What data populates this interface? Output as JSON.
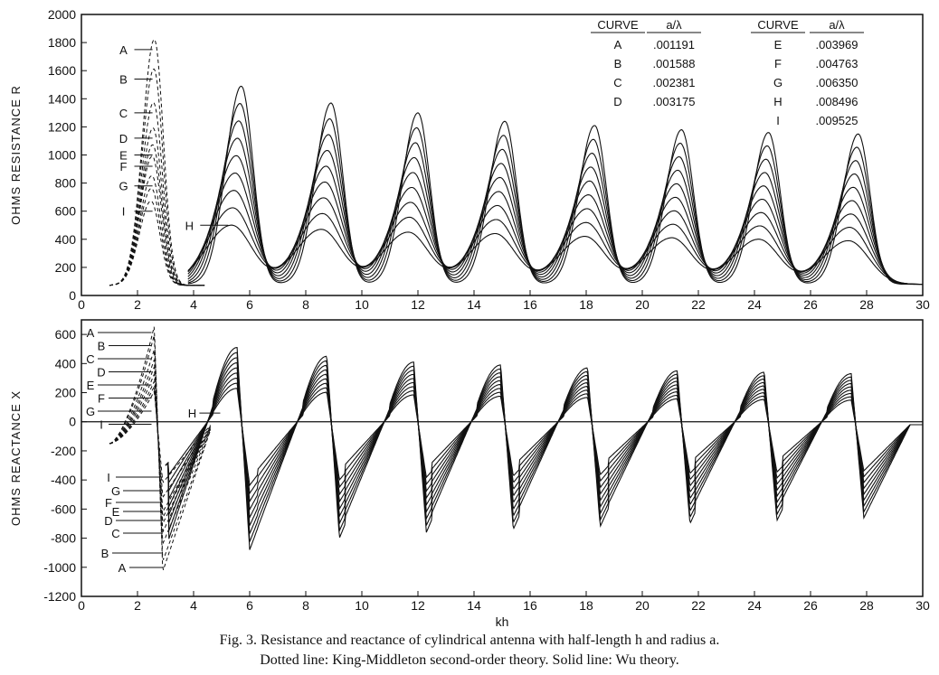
{
  "caption": {
    "line1": "Fig. 3.    Resistance and reactance of cylindrical antenna with half-length h and radius a.",
    "line2": "Dotted line: King-Middleton second-order theory. Solid line: Wu theory."
  },
  "chart_data": [
    {
      "type": "line",
      "panel": "top",
      "title": "",
      "xlabel": "",
      "ylabel": "OHMS  RESISTANCE  R",
      "xlim": [
        0,
        30
      ],
      "ylim": [
        0,
        2000
      ],
      "xticks": [
        0,
        2,
        4,
        6,
        8,
        10,
        12,
        14,
        16,
        18,
        20,
        22,
        24,
        26,
        28,
        30
      ],
      "yticks": [
        0,
        200,
        400,
        600,
        800,
        1000,
        1200,
        1400,
        1600,
        1800,
        2000
      ],
      "legend": {
        "headers": [
          "CURVE",
          "a/λ",
          "CURVE",
          "a/λ"
        ],
        "entries": [
          {
            "curve": "A",
            "a_over_lambda": ".001191"
          },
          {
            "curve": "B",
            "a_over_lambda": ".001588"
          },
          {
            "curve": "C",
            "a_over_lambda": ".002381"
          },
          {
            "curve": "D",
            "a_over_lambda": ".003175"
          },
          {
            "curve": "E",
            "a_over_lambda": ".003969"
          },
          {
            "curve": "F",
            "a_over_lambda": ".004763"
          },
          {
            "curve": "G",
            "a_over_lambda": ".006350"
          },
          {
            "curve": "H",
            "a_over_lambda": ".008496"
          },
          {
            "curve": "I",
            "a_over_lambda": ".009525"
          }
        ],
        "placement": "top-right"
      },
      "first_peak_kh": 2.6,
      "first_peak_R": [
        1750,
        1540,
        1300,
        1120,
        1000,
        920,
        780,
        0,
        600
      ],
      "peak_kh": [
        5.7,
        8.9,
        12.0,
        15.1,
        18.3,
        21.4,
        24.5,
        27.7
      ],
      "peak_R_max": [
        1490,
        1370,
        1300,
        1240,
        1210,
        1180,
        1160,
        1150
      ],
      "peak_R_min": [
        500,
        470,
        450,
        440,
        420,
        410,
        400,
        390
      ],
      "valley_R": 80,
      "curve_labels": [
        {
          "label": "A",
          "kh": 2.6,
          "R": 1750
        },
        {
          "label": "B",
          "kh": 2.6,
          "R": 1540
        },
        {
          "label": "C",
          "kh": 2.6,
          "R": 1300
        },
        {
          "label": "D",
          "kh": 2.6,
          "R": 1120
        },
        {
          "label": "E",
          "kh": 2.6,
          "R": 1000
        },
        {
          "label": "F",
          "kh": 2.6,
          "R": 920
        },
        {
          "label": "G",
          "kh": 2.6,
          "R": 780
        },
        {
          "label": "I",
          "kh": 2.6,
          "R": 600
        },
        {
          "label": "H",
          "kh": 5.3,
          "R": 500
        }
      ]
    },
    {
      "type": "line",
      "panel": "bottom",
      "title": "",
      "xlabel": "kh",
      "ylabel": "OHMS  REACTANCE  X",
      "xlim": [
        0,
        30
      ],
      "ylim": [
        -1200,
        700
      ],
      "xticks": [
        0,
        2,
        4,
        6,
        8,
        10,
        12,
        14,
        16,
        18,
        20,
        22,
        24,
        26,
        28,
        30
      ],
      "yticks": [
        -1200,
        -1000,
        -800,
        -600,
        -400,
        -200,
        0,
        200,
        400,
        600
      ],
      "first_max_kh": 2.6,
      "first_max_X": [
        660,
        600,
        500,
        430,
        380,
        330,
        280,
        0,
        210
      ],
      "first_min_kh": 2.9,
      "first_min_X": [
        -1030,
        -960,
        -840,
        -760,
        -700,
        -660,
        -620,
        0,
        -420
      ],
      "zero_cross_kh": [
        4.7,
        7.9,
        11.0,
        14.1,
        17.2,
        20.4,
        23.5,
        26.6
      ],
      "max_X_peak": [
        510,
        450,
        410,
        390,
        370,
        350,
        340,
        330
      ],
      "min_X_trough": [
        -880,
        -800,
        -760,
        -740,
        -720,
        -700,
        -680,
        -660
      ],
      "curve_labels_upper": [
        "A",
        "B",
        "C",
        "D",
        "E",
        "F",
        "G",
        "I"
      ],
      "curve_labels_lower": [
        "I",
        "G",
        "F",
        "E",
        "D",
        "C",
        "B",
        "A"
      ],
      "h_label": "H"
    }
  ]
}
